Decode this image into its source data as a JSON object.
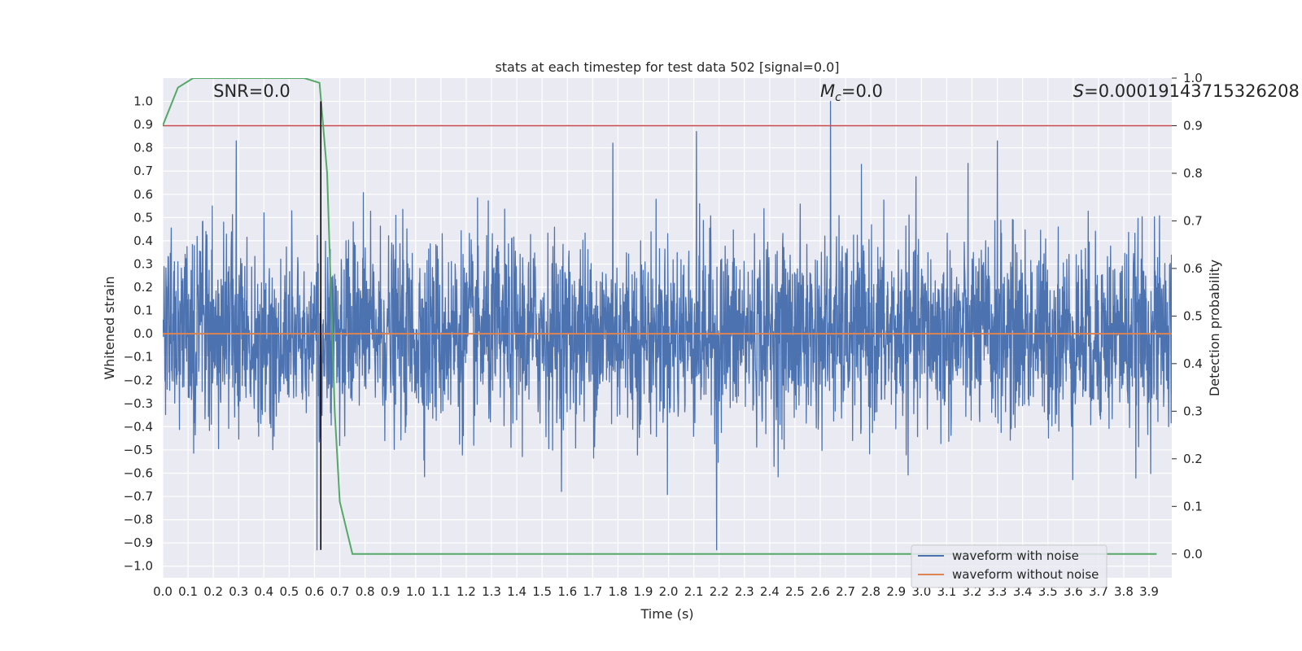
{
  "chart_data": {
    "type": "line",
    "title": "stats at each timestep for test data 502 [signal=0.0]",
    "xlabel": "Time (s)",
    "ylabel": "Whitened strain",
    "y2label": "Detection probability",
    "xlim": [
      0.0,
      3.99
    ],
    "ylim": [
      -1.05,
      1.1
    ],
    "y2lim": [
      -0.05,
      1.0
    ],
    "x_ticks": [
      "0.0",
      "0.1",
      "0.2",
      "0.3",
      "0.4",
      "0.5",
      "0.6",
      "0.7",
      "0.8",
      "0.9",
      "1.0",
      "1.1",
      "1.2",
      "1.3",
      "1.4",
      "1.5",
      "1.6",
      "1.7",
      "1.8",
      "1.9",
      "2.0",
      "2.1",
      "2.2",
      "2.3",
      "2.4",
      "2.5",
      "2.6",
      "2.7",
      "2.8",
      "2.9",
      "3.0",
      "3.1",
      "3.2",
      "3.3",
      "3.4",
      "3.5",
      "3.6",
      "3.7",
      "3.8",
      "3.9"
    ],
    "y_ticks": [
      "1.0",
      "0.9",
      "0.8",
      "0.7",
      "0.6",
      "0.5",
      "0.4",
      "0.3",
      "0.2",
      "0.1",
      "0.0",
      "−0.1",
      "−0.2",
      "−0.3",
      "−0.4",
      "−0.5",
      "−0.6",
      "−0.7",
      "−0.8",
      "−0.9",
      "−1.0"
    ],
    "y2_ticks": [
      "1.0",
      "0.9",
      "0.8",
      "0.7",
      "0.6",
      "0.5",
      "0.4",
      "0.3",
      "0.2",
      "0.1",
      "0.0"
    ],
    "grid": true,
    "legend_position": "bottom-right",
    "series": [
      {
        "name": "waveform with noise",
        "color": "#4c72b0",
        "axis": "left",
        "kind": "noise",
        "envelope_typical": 0.45,
        "peaks": [
          {
            "x": 0.29,
            "y": 0.83
          },
          {
            "x": 0.61,
            "y": -0.93
          },
          {
            "x": 1.78,
            "y": 0.82
          },
          {
            "x": 2.11,
            "y": 0.87
          },
          {
            "x": 2.19,
            "y": -0.93
          },
          {
            "x": 2.64,
            "y": 1.0
          },
          {
            "x": 3.3,
            "y": 0.83
          }
        ]
      },
      {
        "name": "waveform without noise",
        "color": "#dd8452",
        "axis": "left",
        "x": [
          0.0,
          3.99
        ],
        "y": [
          0.0,
          0.0
        ]
      },
      {
        "color": "#55a868",
        "axis": "right",
        "x": [
          0.0,
          0.06,
          0.12,
          0.2,
          0.3,
          0.4,
          0.5,
          0.56,
          0.62,
          0.65,
          0.68,
          0.7,
          0.75,
          0.8,
          1.0,
          2.0,
          3.0,
          3.93
        ],
        "y": [
          0.9,
          0.98,
          1.0,
          1.0,
          1.0,
          1.0,
          1.0,
          1.0,
          0.99,
          0.8,
          0.3,
          0.11,
          0.0,
          0.0,
          0.0,
          0.0,
          0.0,
          0.0
        ]
      }
    ],
    "threshold": {
      "color": "#c44e52",
      "axis": "right",
      "y": 0.9
    },
    "marker_line": {
      "color": "#000000",
      "x": 0.625,
      "y_from": -0.93,
      "y_to": 1.0
    },
    "annotations": [
      {
        "text": "SNR=0.0",
        "x": 0.2,
        "y": 1.02
      },
      {
        "text_main": "M",
        "text_sub": "c",
        "text_rest": "=0.0",
        "x": 2.6,
        "y": 1.02
      },
      {
        "text_main": "S",
        "text_rest": "=0.00019143715326208",
        "x": 3.6,
        "y": 1.02
      }
    ],
    "background_color": "#eaeaf2",
    "grid_color": "#ffffff"
  }
}
